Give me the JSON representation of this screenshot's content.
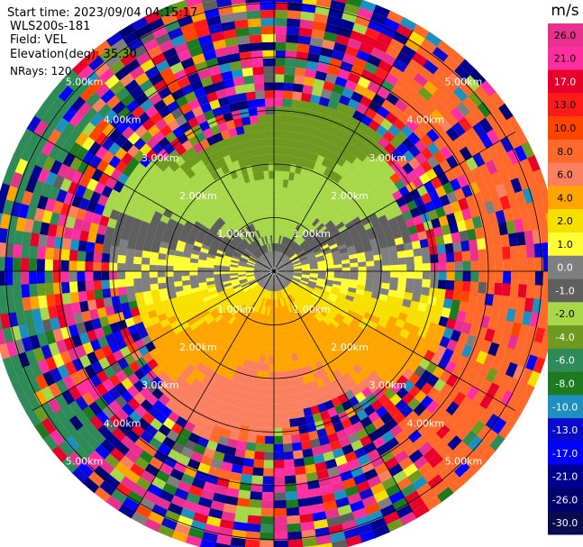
{
  "header": {
    "start_time": "Start time: 2023/09/04 04:15:17",
    "instrument": "WLS200s-181",
    "field": "Field: VEL",
    "elevation": "Elevation(deg): 35.30",
    "nrays": "NRays: 120"
  },
  "colorbar": {
    "unit": "m/s",
    "ticks": [
      "26.0",
      "21.0",
      "17.0",
      "13.0",
      "10.0",
      "8.0",
      "6.0",
      "4.0",
      "2.0",
      "1.0",
      "0.0",
      "-1.0",
      "-2.0",
      "-4.0",
      "-6.0",
      "-8.0",
      "-10.0",
      "-13.0",
      "-17.0",
      "-21.0",
      "-26.0",
      "-30.0"
    ],
    "colors": [
      "#e8308e",
      "#ff2fa0",
      "#e8002a",
      "#ff1a1a",
      "#ff4400",
      "#ff6a2a",
      "#fa8060",
      "#ffa500",
      "#f7e000",
      "#ffff33",
      "#7f7f7f",
      "#5f5f5f",
      "#a6d84a",
      "#6e9a20",
      "#2e8b57",
      "#1e7a1e",
      "#1e90c0",
      "#0a0acc",
      "#0000ff",
      "#000090",
      "#00006e",
      "#0a0a50"
    ]
  },
  "chart_data": {
    "type": "heatmap",
    "projection": "polar-ppi",
    "field": "VEL",
    "units": "m/s",
    "nrays": 120,
    "range_rings_km": [
      1.0,
      2.0,
      3.0,
      4.0,
      5.0
    ],
    "range_ring_labels": [
      "1.00km",
      "2.00km",
      "3.00km",
      "4.00km",
      "5.00km"
    ],
    "max_range_km": 5.2,
    "gate_spacing_km": 0.15,
    "spoke_angles_deg": [
      0,
      30,
      60,
      90,
      120,
      150,
      180,
      210,
      240,
      270,
      300,
      330
    ],
    "noise_free_range_km": 2.8,
    "inner_pattern": [
      {
        "sector": "north",
        "range_km": [
          0,
          2.8
        ],
        "velocity_ms": [
          -6.0,
          -1.0
        ]
      },
      {
        "sector": "south",
        "range_km": [
          0,
          2.8
        ],
        "velocity_ms": [
          1.0,
          6.0
        ]
      }
    ],
    "outer_pattern": [
      {
        "sector": "east",
        "range_km": [
          3.6,
          5.2
        ],
        "velocity_ms": [
          6.0,
          8.0
        ]
      },
      {
        "sector": "west",
        "range_km": [
          4.5,
          5.2
        ],
        "velocity_ms": [
          -8.0,
          -6.0
        ]
      }
    ],
    "grid": true
  }
}
